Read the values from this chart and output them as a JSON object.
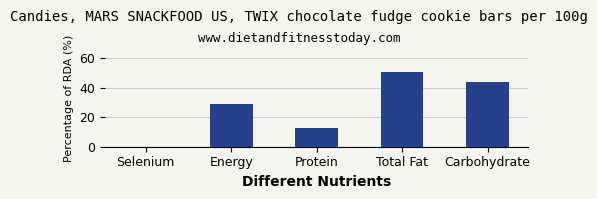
{
  "title": "Candies, MARS SNACKFOOD US, TWIX chocolate fudge cookie bars per 100g",
  "subtitle": "www.dietandfitnesstoday.com",
  "categories": [
    "Selenium",
    "Energy",
    "Protein",
    "Total Fat",
    "Carbohydrate"
  ],
  "values": [
    0,
    29,
    13,
    51,
    44
  ],
  "bar_color": "#27408B",
  "xlabel": "Different Nutrients",
  "ylabel": "Percentage of RDA (%)",
  "ylim": [
    0,
    65
  ],
  "yticks": [
    0,
    20,
    40,
    60
  ],
  "title_fontsize": 10,
  "subtitle_fontsize": 9,
  "label_fontsize": 9,
  "xlabel_fontsize": 10,
  "ylabel_fontsize": 8,
  "background_color": "#f5f5f0",
  "grid_color": "#cccccc"
}
